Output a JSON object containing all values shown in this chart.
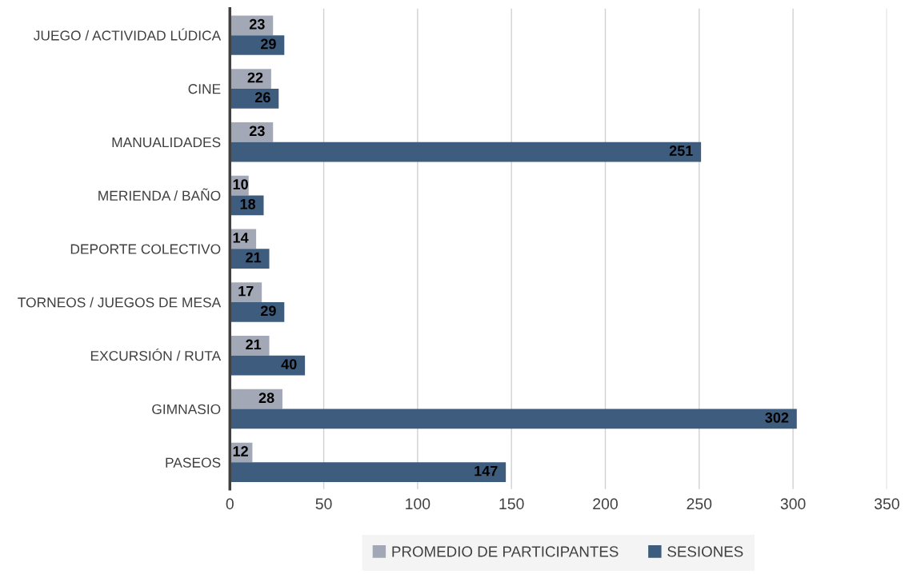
{
  "chart_data": {
    "type": "bar",
    "orientation": "horizontal",
    "categories": [
      "JUEGO / ACTIVIDAD LÚDICA",
      "CINE",
      "MANUALIDADES",
      "MERIENDA / BAÑO",
      "DEPORTE COLECTIVO",
      "TORNEOS / JUEGOS DE MESA",
      "EXCURSIÓN / RUTA",
      "GIMNASIO",
      "PASEOS"
    ],
    "series": [
      {
        "name": "PROMEDIO DE PARTICIPANTES",
        "color": "#a2a8b6",
        "values": [
          23,
          22,
          23,
          10,
          14,
          17,
          21,
          28,
          12
        ]
      },
      {
        "name": "SESIONES",
        "color": "#3d5c7e",
        "values": [
          29,
          26,
          251,
          18,
          21,
          29,
          40,
          302,
          147
        ]
      }
    ],
    "xlim": [
      0,
      350
    ],
    "xticks": [
      0,
      50,
      100,
      150,
      200,
      250,
      300,
      350
    ],
    "grid": "x",
    "legend": "bottom",
    "data_labels": true
  }
}
